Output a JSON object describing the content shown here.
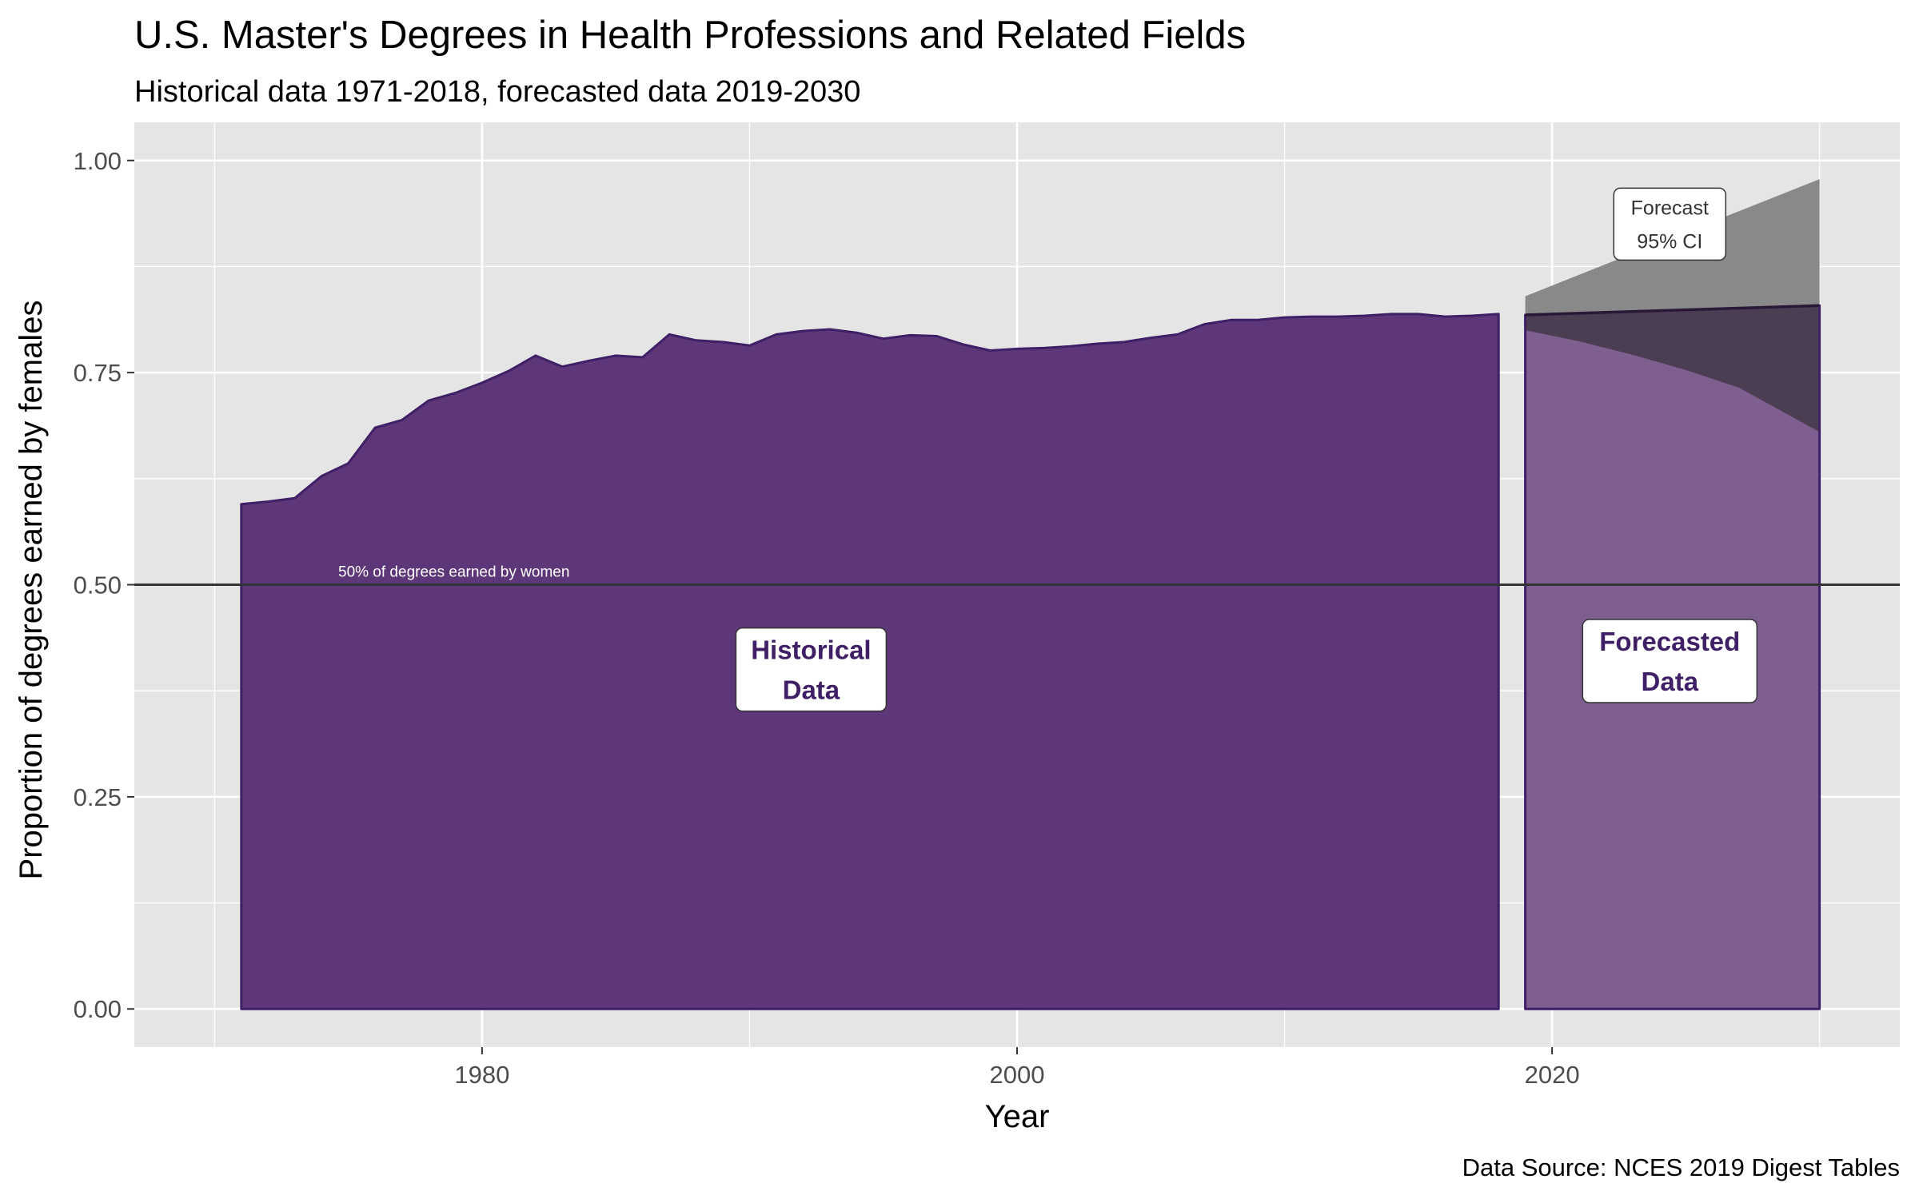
{
  "chart_data": {
    "type": "area",
    "title": "U.S. Master's Degrees in Health Professions and Related Fields",
    "subtitle": "Historical data 1971-2018, forecasted data 2019-2030",
    "xlabel": "Year",
    "ylabel": "Proportion of degrees earned by females",
    "caption": "Data Source: NCES 2019 Digest Tables",
    "xlim": [
      1967,
      2033
    ],
    "ylim": [
      -0.045,
      1.045
    ],
    "x_ticks": [
      1980,
      2000,
      2020
    ],
    "x_tick_labels": [
      "1980",
      "2000",
      "2020"
    ],
    "y_ticks": [
      0,
      0.25,
      0.5,
      0.75,
      1.0
    ],
    "y_tick_labels": [
      "0.00",
      "0.25",
      "0.50",
      "0.75",
      "1.00"
    ],
    "grid": true,
    "series": [
      {
        "values": [
          [
            1971,
            0.595
          ],
          [
            1972,
            0.598
          ],
          [
            1973,
            0.602
          ],
          [
            1974,
            0.628
          ],
          [
            1975,
            0.643
          ],
          [
            1976,
            0.685
          ],
          [
            1977,
            0.694
          ],
          [
            1978,
            0.717
          ],
          [
            1979,
            0.726
          ],
          [
            1980,
            0.738
          ],
          [
            1981,
            0.752
          ],
          [
            1982,
            0.77
          ],
          [
            1983,
            0.757
          ],
          [
            1984,
            0.764
          ],
          [
            1985,
            0.77
          ],
          [
            1986,
            0.768
          ],
          [
            1987,
            0.795
          ],
          [
            1988,
            0.788
          ],
          [
            1989,
            0.786
          ],
          [
            1990,
            0.782
          ],
          [
            1991,
            0.795
          ],
          [
            1992,
            0.799
          ],
          [
            1993,
            0.801
          ],
          [
            1994,
            0.797
          ],
          [
            1995,
            0.79
          ],
          [
            1996,
            0.794
          ],
          [
            1997,
            0.793
          ],
          [
            1998,
            0.783
          ],
          [
            1999,
            0.776
          ],
          [
            2000,
            0.778
          ],
          [
            2001,
            0.779
          ],
          [
            2002,
            0.781
          ],
          [
            2003,
            0.784
          ],
          [
            2004,
            0.786
          ],
          [
            2005,
            0.791
          ],
          [
            2006,
            0.795
          ],
          [
            2007,
            0.807
          ],
          [
            2008,
            0.812
          ],
          [
            2009,
            0.812
          ],
          [
            2010,
            0.815
          ],
          [
            2011,
            0.816
          ],
          [
            2012,
            0.816
          ],
          [
            2013,
            0.817
          ],
          [
            2014,
            0.819
          ],
          [
            2015,
            0.819
          ],
          [
            2016,
            0.816
          ],
          [
            2017,
            0.817
          ],
          [
            2018,
            0.819
          ]
        ]
      },
      {
        "values": [
          [
            2019,
            0.818
          ],
          [
            2030,
            0.829
          ]
        ],
        "ci_lower": [
          [
            2019,
            0.8
          ],
          [
            2021,
            0.787
          ],
          [
            2023,
            0.771
          ],
          [
            2025,
            0.753
          ],
          [
            2027,
            0.732
          ],
          [
            2030,
            0.68
          ]
        ],
        "ci_upper": [
          [
            2019,
            0.84
          ],
          [
            2030,
            0.978
          ]
        ]
      }
    ],
    "reference_line": {
      "y": 0.5,
      "label": "50% of degrees earned by women"
    },
    "annotations": [
      {
        "lines": [
          "Historical",
          "Data"
        ],
        "x": 1992.3,
        "y": 0.4
      },
      {
        "lines": [
          "Forecasted",
          "Data"
        ],
        "x": 2024.4,
        "y": 0.41
      },
      {
        "lines": [
          "Forecast",
          "95% CI"
        ],
        "x": 2024.4,
        "y": 0.925
      }
    ],
    "colors": {
      "historical_fill": "#5e3779",
      "historical_line": "#3f1f66",
      "forecast_fill": "#7e5f8f",
      "ci_fill": "#898989",
      "ci_overlap": "#4b3e53",
      "forecast_line": "#2a1838",
      "reference_line": "#333333",
      "panel_bg": "#e5e5e5",
      "grid": "#ffffff"
    }
  }
}
